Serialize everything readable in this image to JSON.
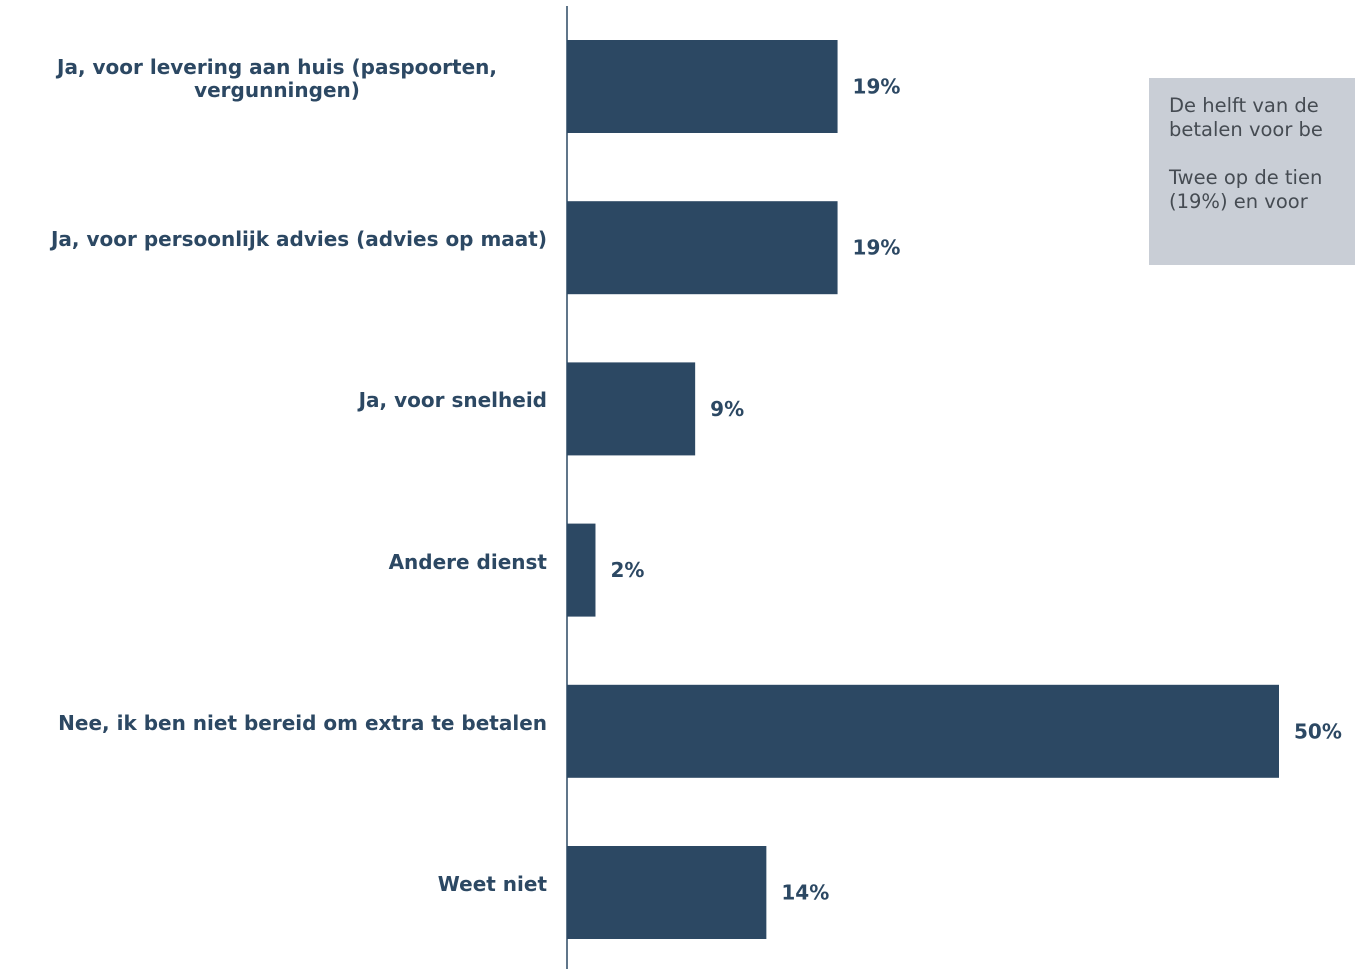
{
  "chart_data": {
    "type": "bar",
    "orientation": "horizontal",
    "categories": [
      "Ja, voor levering aan huis (paspoorten, vergunningen)",
      "Ja, voor persoonlijk advies (advies op maat)",
      "Ja, voor snelheid",
      "Andere dienst",
      "Nee, ik ben niet bereid om extra te betalen",
      "Weet niet"
    ],
    "values": [
      19,
      19,
      9,
      2,
      50,
      14
    ],
    "data_labels": [
      "19%",
      "19%",
      "9%",
      "2%",
      "50%",
      "14%"
    ],
    "unit": "%",
    "xlim": [
      0,
      50
    ],
    "bar_color": "#2c4863",
    "label_color": "#2c4863",
    "grid": false,
    "legend": false
  },
  "note": {
    "paragraph_1": "De helft van de\nbetalen voor be",
    "paragraph_2": "Twee op de tien\n(19%) en voor",
    "background": "#c9ced6",
    "text_color": "#454b52"
  }
}
